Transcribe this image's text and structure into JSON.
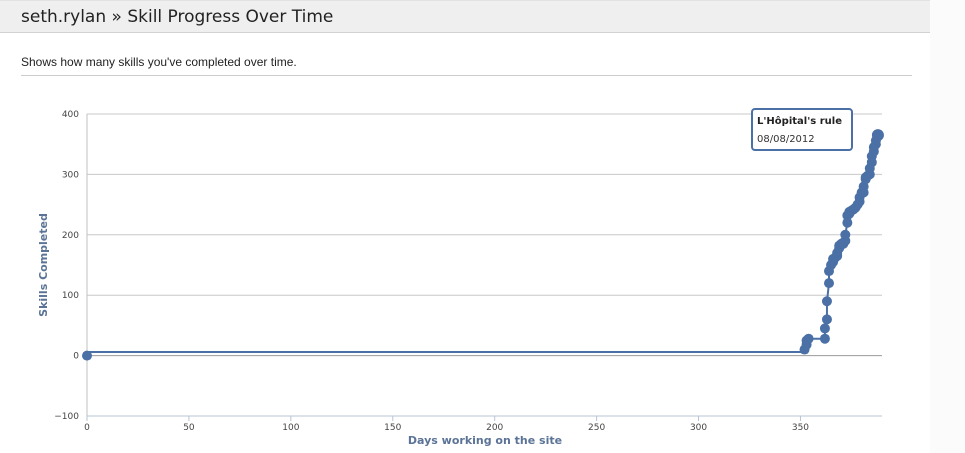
{
  "header": {
    "title": "seth.rylan » Skill Progress Over Time"
  },
  "description": "Shows how many skills you've completed over time.",
  "tooltip": {
    "title": "L'Hôpital's rule",
    "date": "08/08/2012"
  },
  "colors": {
    "series": "#4a70a6",
    "grid": "#c8c8c8",
    "axis_title": "#5a7396"
  },
  "chart_data": {
    "type": "line",
    "xlabel": "Days working on the site",
    "ylabel": "Skills Completed",
    "xlim": [
      0,
      390
    ],
    "ylim": [
      -100,
      400
    ],
    "x_ticks": [
      0,
      50,
      100,
      150,
      200,
      250,
      300,
      350
    ],
    "y_ticks": [
      -100,
      0,
      100,
      200,
      300,
      400
    ],
    "y_grid": true,
    "series": [
      {
        "x": [
          0,
          0,
          352,
          352,
          353,
          353,
          354,
          362,
          362,
          363,
          363,
          364,
          364,
          365,
          366,
          366,
          367,
          368,
          368,
          369,
          369,
          370,
          371,
          371,
          372,
          372,
          373,
          373,
          374,
          374,
          375,
          376,
          377,
          378,
          379,
          379,
          380,
          381,
          381,
          382,
          382,
          383,
          384,
          384,
          385,
          385,
          386,
          386,
          387,
          387,
          388
        ],
        "y": [
          0,
          6,
          6,
          10,
          18,
          25,
          28,
          28,
          45,
          60,
          90,
          120,
          140,
          150,
          155,
          160,
          162,
          165,
          170,
          178,
          182,
          185,
          185,
          187,
          190,
          200,
          220,
          232,
          235,
          238,
          240,
          242,
          245,
          250,
          255,
          262,
          270,
          270,
          280,
          292,
          295,
          298,
          300,
          310,
          320,
          330,
          338,
          345,
          350,
          356,
          365
        ]
      }
    ]
  }
}
